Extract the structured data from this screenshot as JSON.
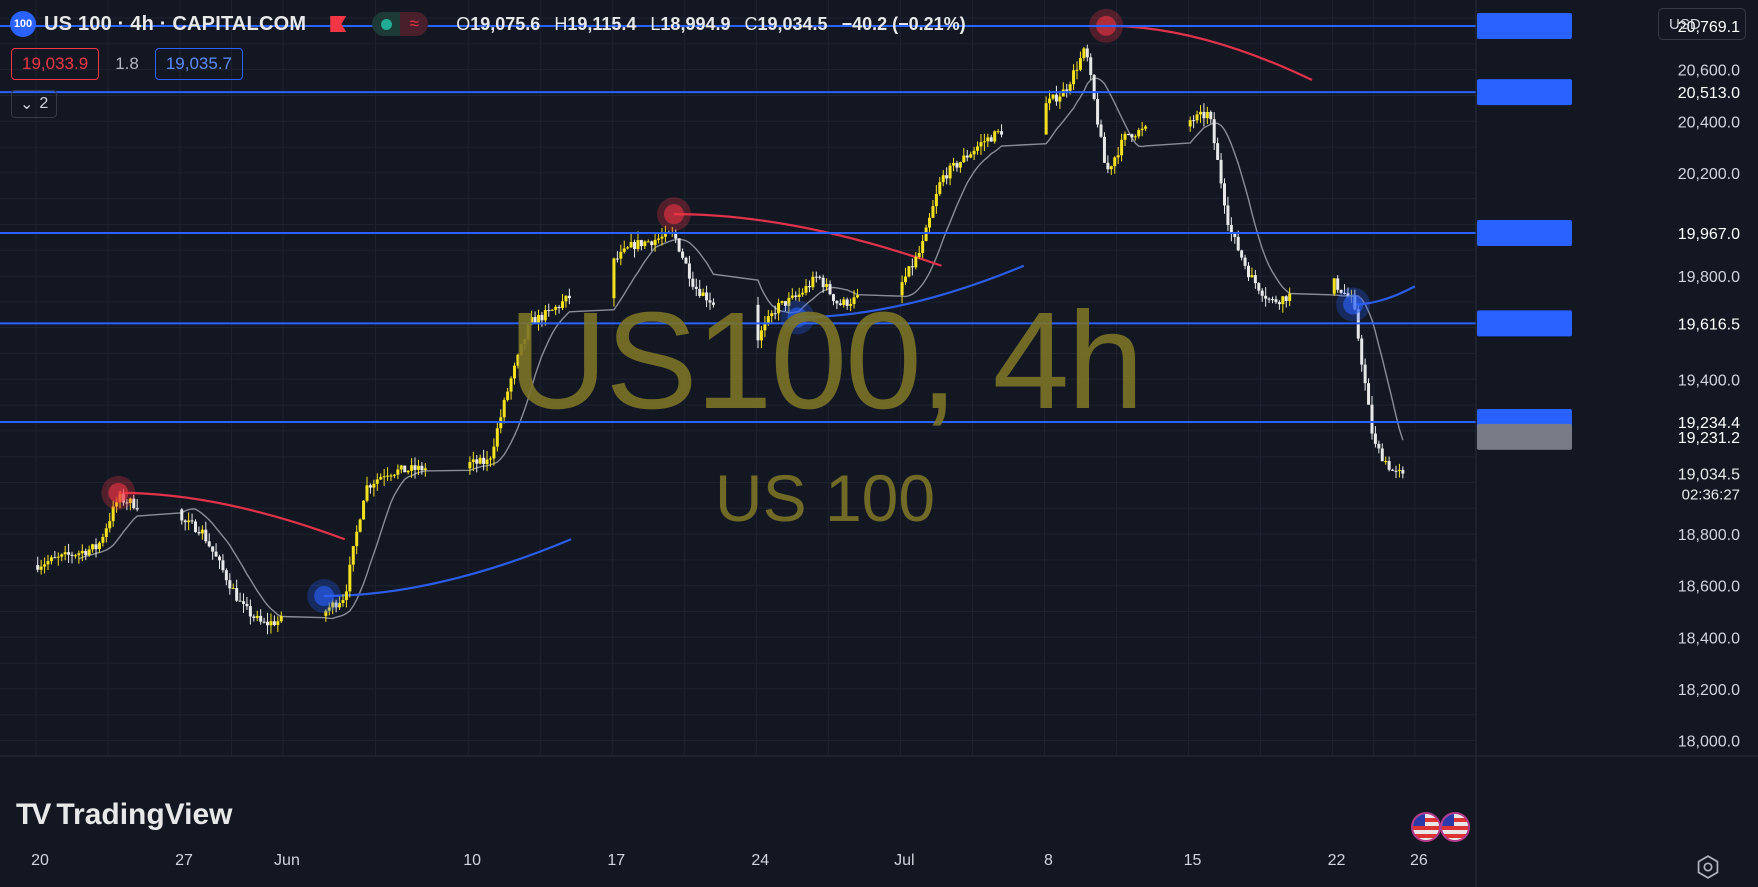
{
  "header": {
    "symbol_badge": "100",
    "title": "US 100 · 4h · CAPITALCOM",
    "ohlc": {
      "o_label": "O",
      "o": "19,075.6",
      "h_label": "H",
      "h": "19,115.4",
      "l_label": "L",
      "l": "18,994.9",
      "c_label": "C",
      "c": "19,034.5",
      "change": "−40.2 (−0.21%)"
    },
    "sell_price": "19,033.9",
    "spread": "1.8",
    "buy_price": "19,035.7",
    "indicators_count": "2",
    "currency": "USD"
  },
  "watermark": {
    "main": "US100, 4h",
    "sub": "US 100"
  },
  "branding": {
    "logo_text": "TradingView"
  },
  "colors": {
    "background": "#131722",
    "grid": "#1f2330",
    "up": "#f5e21f",
    "down": "#e8e8e8",
    "hline": "#2962ff",
    "red_curve": "#e0334b",
    "blue_curve": "#2b5ce6",
    "ma": "#8a8d96",
    "label_blue": "#2962ff",
    "label_gray": "#787b86"
  },
  "chart_data": {
    "type": "candlestick",
    "x_ticks": [
      "20",
      "27",
      "Jun",
      "10",
      "17",
      "24",
      "Jul",
      "8",
      "15",
      "22",
      "26"
    ],
    "y_ticks": [
      "18,000.0",
      "18,200.0",
      "18,400.0",
      "18,600.0",
      "18,800.0",
      "19,400.0",
      "19,800.0",
      "20,200.0",
      "20,400.0",
      "20,600.0"
    ],
    "ylim": [
      17940,
      20870
    ],
    "horizontal_levels": [
      {
        "value": 20769.1,
        "label": "20,769.1"
      },
      {
        "value": 20513.0,
        "label": "20,513.0"
      },
      {
        "value": 19967.0,
        "label": "19,967.0"
      },
      {
        "value": 19616.5,
        "label": "19,616.5"
      },
      {
        "value": 19234.4,
        "label": "19,234.4"
      }
    ],
    "price_label": {
      "value": 19231.2,
      "label": "19,231.2"
    },
    "last_price": {
      "value": 19034.5,
      "label": "19,034.5",
      "countdown": "02:36:27"
    },
    "period": "4h",
    "anchors": [
      {
        "date": "2024-05-20",
        "close": 18680
      },
      {
        "date": "2024-05-23",
        "close": 18750
      },
      {
        "date": "2024-05-24",
        "close": 18940
      },
      {
        "date": "2024-05-28",
        "close": 18820
      },
      {
        "date": "2024-05-30",
        "close": 18520
      },
      {
        "date": "2024-05-31",
        "close": 18450
      },
      {
        "date": "2024-06-03",
        "close": 18500
      },
      {
        "date": "2024-06-04",
        "close": 18560
      },
      {
        "date": "2024-06-05",
        "close": 18980
      },
      {
        "date": "2024-06-06",
        "close": 19040
      },
      {
        "date": "2024-06-11",
        "close": 19080
      },
      {
        "date": "2024-06-12",
        "close": 19380
      },
      {
        "date": "2024-06-13",
        "close": 19620
      },
      {
        "date": "2024-06-14",
        "close": 19660
      },
      {
        "date": "2024-06-17",
        "close": 19850
      },
      {
        "date": "2024-06-18",
        "close": 19920
      },
      {
        "date": "2024-06-20",
        "close": 19960
      },
      {
        "date": "2024-06-21",
        "close": 19760
      },
      {
        "date": "2024-06-24",
        "close": 19550
      },
      {
        "date": "2024-06-25",
        "close": 19680
      },
      {
        "date": "2024-06-26",
        "close": 19720
      },
      {
        "date": "2024-06-27",
        "close": 19800
      },
      {
        "date": "2024-06-28",
        "close": 19690
      },
      {
        "date": "2024-07-01",
        "close": 19760
      },
      {
        "date": "2024-07-02",
        "close": 19900
      },
      {
        "date": "2024-07-03",
        "close": 20180
      },
      {
        "date": "2024-07-05",
        "close": 20320
      },
      {
        "date": "2024-07-08",
        "close": 20460
      },
      {
        "date": "2024-07-09",
        "close": 20520
      },
      {
        "date": "2024-07-10",
        "close": 20680
      },
      {
        "date": "2024-07-11",
        "close": 20200
      },
      {
        "date": "2024-07-12",
        "close": 20350
      },
      {
        "date": "2024-07-15",
        "close": 20400
      },
      {
        "date": "2024-07-16",
        "close": 20430
      },
      {
        "date": "2024-07-17",
        "close": 19980
      },
      {
        "date": "2024-07-18",
        "close": 19800
      },
      {
        "date": "2024-07-19",
        "close": 19700
      },
      {
        "date": "2024-07-22",
        "close": 19780
      },
      {
        "date": "2024-07-23",
        "close": 19700
      },
      {
        "date": "2024-07-24",
        "close": 19150
      },
      {
        "date": "2024-07-25",
        "close": 19034.5
      }
    ],
    "markers": [
      {
        "type": "peak",
        "date": "2024-05-24",
        "value": 18960
      },
      {
        "type": "peak",
        "date": "2024-06-20",
        "value": 20040
      },
      {
        "type": "peak",
        "date": "2024-07-11",
        "value": 20770
      },
      {
        "type": "trough",
        "date": "2024-06-03",
        "value": 18560
      },
      {
        "type": "trough",
        "date": "2024-06-26",
        "value": 19640
      },
      {
        "type": "trough",
        "date": "2024-07-23",
        "value": 19690
      }
    ],
    "red_curves": [
      {
        "from_date": "2024-05-24",
        "from": 18960,
        "to_date": "2024-06-04",
        "to": 18780
      },
      {
        "from_date": "2024-06-20",
        "from": 20040,
        "to_date": "2024-07-03",
        "to": 19840
      },
      {
        "from_date": "2024-07-11",
        "from": 20770,
        "to_date": "2024-07-21",
        "to": 20560
      }
    ],
    "blue_curves": [
      {
        "from_date": "2024-06-03",
        "from": 18560,
        "to_date": "2024-06-15",
        "to": 18780
      },
      {
        "from_date": "2024-06-26",
        "from": 19640,
        "to_date": "2024-07-07",
        "to": 19840
      },
      {
        "from_date": "2024-07-23",
        "from": 19690,
        "to_date": "2024-07-26",
        "to": 19760
      }
    ]
  }
}
